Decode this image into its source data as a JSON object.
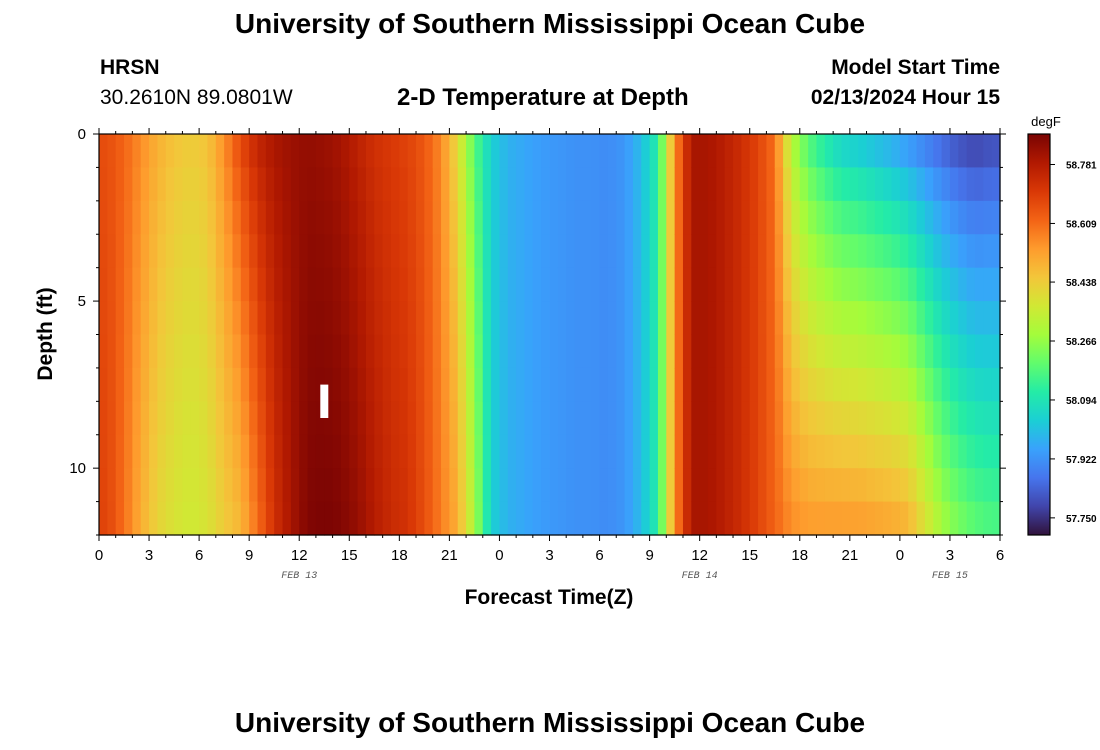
{
  "header": {
    "main_title": "University of Southern Mississippi Ocean Cube",
    "station_name": "HRSN",
    "station_coords": "30.2610N  89.0801W",
    "model_start_label": "Model Start Time",
    "model_start_value": "02/13/2024 Hour 15"
  },
  "footer": {
    "title": "University of Southern Mississippi Ocean Cube"
  },
  "chart_data": {
    "type": "heatmap",
    "title": "2-D Temperature at Depth",
    "xlabel": "Forecast Time(Z)",
    "ylabel": "Depth (ft)",
    "x_range_hours": [
      0,
      54
    ],
    "y_range_ft": [
      0,
      12
    ],
    "x_ticks": [
      {
        "hour": 0,
        "label": "0"
      },
      {
        "hour": 3,
        "label": "3"
      },
      {
        "hour": 6,
        "label": "6"
      },
      {
        "hour": 9,
        "label": "9"
      },
      {
        "hour": 12,
        "label": "12"
      },
      {
        "hour": 15,
        "label": "15"
      },
      {
        "hour": 18,
        "label": "18"
      },
      {
        "hour": 21,
        "label": "21"
      },
      {
        "hour": 24,
        "label": "0"
      },
      {
        "hour": 27,
        "label": "3"
      },
      {
        "hour": 30,
        "label": "6"
      },
      {
        "hour": 33,
        "label": "9"
      },
      {
        "hour": 36,
        "label": "12"
      },
      {
        "hour": 39,
        "label": "15"
      },
      {
        "hour": 42,
        "label": "18"
      },
      {
        "hour": 45,
        "label": "21"
      },
      {
        "hour": 48,
        "label": "0"
      },
      {
        "hour": 51,
        "label": "3"
      },
      {
        "hour": 54,
        "label": "6"
      }
    ],
    "date_labels": [
      {
        "hour": 12,
        "label": "FEB 13"
      },
      {
        "hour": 36,
        "label": "FEB 14"
      },
      {
        "hour": 51,
        "label": "FEB 15"
      }
    ],
    "y_ticks": [
      {
        "depth": 0,
        "label": "0"
      },
      {
        "depth": 5,
        "label": "5"
      },
      {
        "depth": 10,
        "label": "10"
      }
    ],
    "current_time_marker_hour": 13.5,
    "colorbar": {
      "unit": "degF",
      "min": 57.7,
      "max": 58.87,
      "labels": [
        "58.781",
        "58.609",
        "58.438",
        "58.266",
        "58.094",
        "57.922",
        "57.750"
      ],
      "label_values": [
        58.781,
        58.609,
        58.438,
        58.266,
        58.094,
        57.922,
        57.75
      ],
      "stops": [
        "#30123b",
        "#4145ab",
        "#4675ed",
        "#39a2fc",
        "#1bcfd4",
        "#24eca6",
        "#61fc6c",
        "#a4fc3b",
        "#d1e834",
        "#f3c63a",
        "#fe9b2d",
        "#f36315",
        "#d93806",
        "#b11901",
        "#7a0403"
      ]
    },
    "profile_columns": [
      {
        "hour": 0,
        "surface": 58.66,
        "bottom": 58.68
      },
      {
        "hour": 1,
        "surface": 58.62,
        "bottom": 58.6
      },
      {
        "hour": 2,
        "surface": 58.56,
        "bottom": 58.5
      },
      {
        "hour": 3,
        "surface": 58.5,
        "bottom": 58.42
      },
      {
        "hour": 4,
        "surface": 58.46,
        "bottom": 58.38
      },
      {
        "hour": 5,
        "surface": 58.44,
        "bottom": 58.36
      },
      {
        "hour": 6,
        "surface": 58.46,
        "bottom": 58.38
      },
      {
        "hour": 7,
        "surface": 58.56,
        "bottom": 58.44
      },
      {
        "hour": 8,
        "surface": 58.68,
        "bottom": 58.48
      },
      {
        "hour": 9,
        "surface": 58.76,
        "bottom": 58.6
      },
      {
        "hour": 10,
        "surface": 58.8,
        "bottom": 58.72
      },
      {
        "hour": 11,
        "surface": 58.82,
        "bottom": 58.8
      },
      {
        "hour": 12,
        "surface": 58.83,
        "bottom": 58.86
      },
      {
        "hour": 13,
        "surface": 58.82,
        "bottom": 58.87
      },
      {
        "hour": 14,
        "surface": 58.8,
        "bottom": 58.86
      },
      {
        "hour": 15,
        "surface": 58.76,
        "bottom": 58.83
      },
      {
        "hour": 16,
        "surface": 58.72,
        "bottom": 58.78
      },
      {
        "hour": 17,
        "surface": 58.7,
        "bottom": 58.74
      },
      {
        "hour": 18,
        "surface": 58.68,
        "bottom": 58.72
      },
      {
        "hour": 19,
        "surface": 58.64,
        "bottom": 58.66
      },
      {
        "hour": 20,
        "surface": 58.56,
        "bottom": 58.58
      },
      {
        "hour": 21,
        "surface": 58.4,
        "bottom": 58.5
      },
      {
        "hour": 22,
        "surface": 58.18,
        "bottom": 58.3
      },
      {
        "hour": 23,
        "surface": 58.04,
        "bottom": 58.04
      },
      {
        "hour": 24,
        "surface": 57.98,
        "bottom": 57.98
      },
      {
        "hour": 25,
        "surface": 57.96,
        "bottom": 57.96
      },
      {
        "hour": 26,
        "surface": 57.94,
        "bottom": 57.94
      },
      {
        "hour": 27,
        "surface": 57.93,
        "bottom": 57.93
      },
      {
        "hour": 28,
        "surface": 57.92,
        "bottom": 57.92
      },
      {
        "hour": 29,
        "surface": 57.92,
        "bottom": 57.92
      },
      {
        "hour": 30,
        "surface": 57.91,
        "bottom": 57.91
      },
      {
        "hour": 31,
        "surface": 57.93,
        "bottom": 57.93
      },
      {
        "hour": 32,
        "surface": 58.0,
        "bottom": 58.0
      },
      {
        "hour": 33,
        "surface": 58.12,
        "bottom": 58.12
      },
      {
        "hour": 34,
        "surface": 58.55,
        "bottom": 58.55
      },
      {
        "hour": 35,
        "surface": 58.8,
        "bottom": 58.8
      },
      {
        "hour": 36,
        "surface": 58.8,
        "bottom": 58.8
      },
      {
        "hour": 37,
        "surface": 58.77,
        "bottom": 58.77
      },
      {
        "hour": 38,
        "surface": 58.73,
        "bottom": 58.73
      },
      {
        "hour": 39,
        "surface": 58.68,
        "bottom": 58.68
      },
      {
        "hour": 40,
        "surface": 58.6,
        "bottom": 58.62
      },
      {
        "hour": 41,
        "surface": 58.3,
        "bottom": 58.56
      },
      {
        "hour": 42,
        "surface": 58.16,
        "bottom": 58.54
      },
      {
        "hour": 43,
        "surface": 58.08,
        "bottom": 58.54
      },
      {
        "hour": 44,
        "surface": 58.02,
        "bottom": 58.54
      },
      {
        "hour": 45,
        "surface": 58.0,
        "bottom": 58.54
      },
      {
        "hour": 46,
        "surface": 57.97,
        "bottom": 58.53
      },
      {
        "hour": 47,
        "surface": 57.94,
        "bottom": 58.52
      },
      {
        "hour": 48,
        "surface": 57.9,
        "bottom": 58.5
      },
      {
        "hour": 49,
        "surface": 57.86,
        "bottom": 58.4
      },
      {
        "hour": 50,
        "surface": 57.82,
        "bottom": 58.3
      },
      {
        "hour": 51,
        "surface": 57.78,
        "bottom": 58.24
      },
      {
        "hour": 52,
        "surface": 57.76,
        "bottom": 58.2
      },
      {
        "hour": 53,
        "surface": 57.78,
        "bottom": 58.18
      }
    ]
  }
}
